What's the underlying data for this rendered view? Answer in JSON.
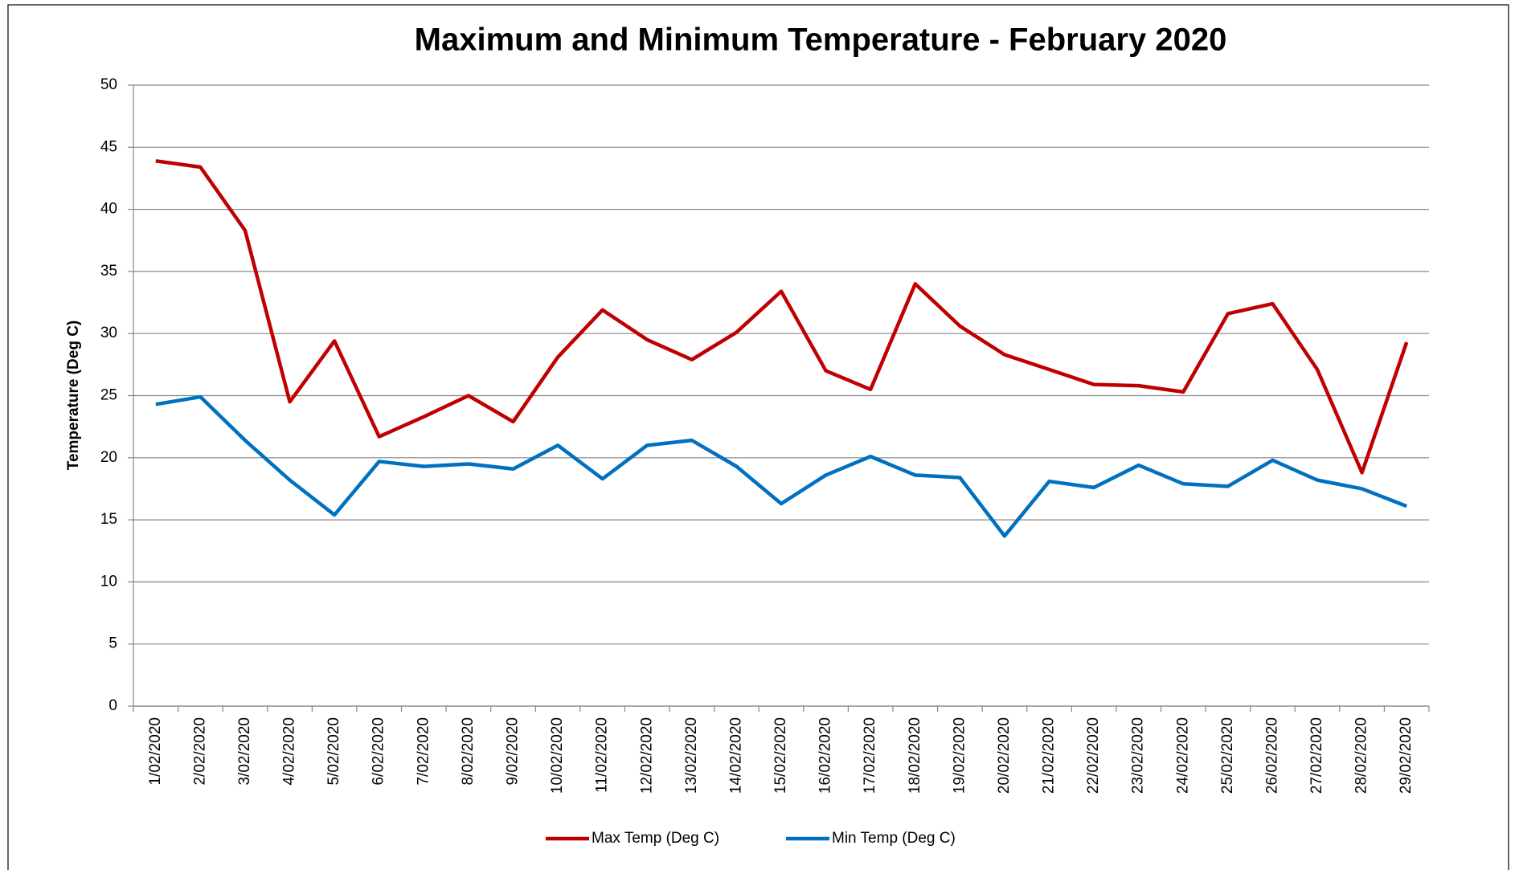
{
  "chart_data": {
    "type": "line",
    "title": "Maximum and Minimum Temperature - February 2020",
    "y_label": "Temperature (Deg C)",
    "categories": [
      "1/02/2020",
      "2/02/2020",
      "3/02/2020",
      "4/02/2020",
      "5/02/2020",
      "6/02/2020",
      "7/02/2020",
      "8/02/2020",
      "9/02/2020",
      "10/02/2020",
      "11/02/2020",
      "12/02/2020",
      "13/02/2020",
      "14/02/2020",
      "15/02/2020",
      "16/02/2020",
      "17/02/2020",
      "18/02/2020",
      "19/02/2020",
      "20/02/2020",
      "21/02/2020",
      "22/02/2020",
      "23/02/2020",
      "24/02/2020",
      "25/02/2020",
      "26/02/2020",
      "27/02/2020",
      "28/02/2020",
      "29/02/2020"
    ],
    "series": [
      {
        "name": "Max Temp (Deg C)",
        "color": "#c00000",
        "values": [
          43.9,
          43.4,
          38.3,
          24.5,
          29.4,
          21.7,
          23.3,
          25.0,
          22.9,
          28.1,
          31.9,
          29.5,
          27.9,
          30.1,
          33.4,
          27.0,
          25.5,
          34.0,
          30.6,
          28.3,
          27.1,
          25.9,
          25.8,
          25.3,
          31.6,
          32.4,
          27.1,
          18.8,
          29.3
        ]
      },
      {
        "name": "Min Temp (Deg C)",
        "color": "#0070c0",
        "values": [
          24.3,
          24.9,
          21.4,
          18.2,
          15.4,
          19.7,
          19.3,
          19.5,
          19.1,
          21.0,
          18.3,
          21.0,
          21.4,
          19.3,
          16.3,
          18.6,
          20.1,
          18.6,
          18.4,
          13.7,
          18.1,
          17.6,
          19.4,
          17.9,
          17.7,
          19.8,
          18.2,
          17.5,
          16.1
        ]
      }
    ],
    "ylim": [
      0,
      50
    ],
    "yticks": [
      0,
      5,
      10,
      15,
      20,
      25,
      30,
      35,
      40,
      45,
      50
    ],
    "grid": true,
    "legend": "bottom"
  }
}
